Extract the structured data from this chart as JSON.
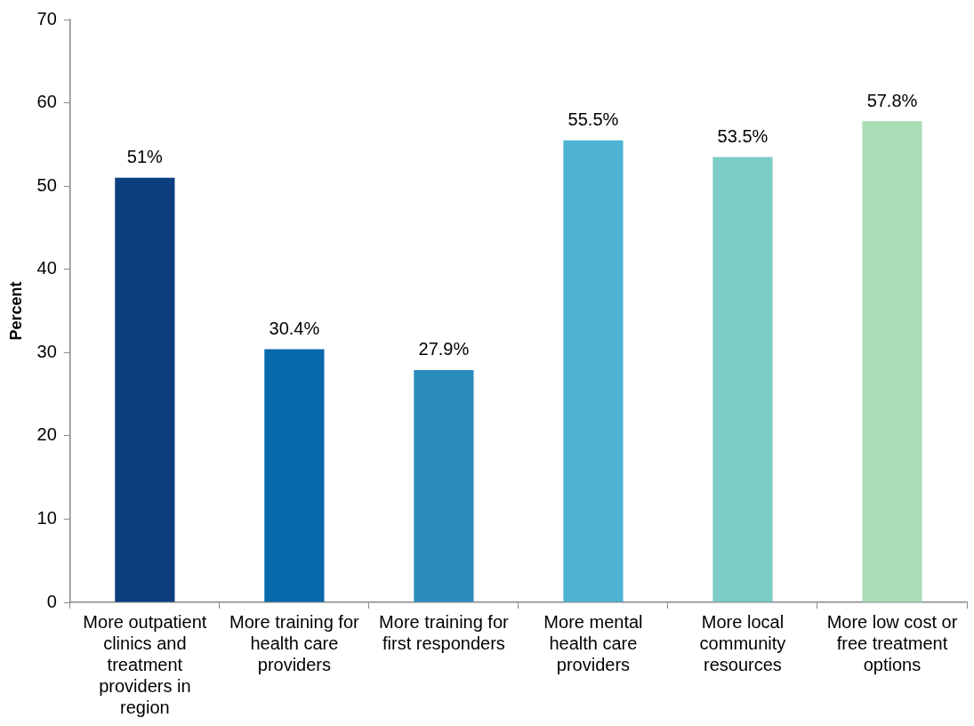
{
  "chart_data": {
    "type": "bar",
    "ylabel": "Percent",
    "categories": [
      "More outpatient clinics and treatment providers in region",
      "More training for health care providers",
      "More training for first responders",
      "More mental health care providers",
      "More local community resources",
      "More low cost or free treatment options"
    ],
    "values": [
      51,
      30.4,
      27.9,
      55.5,
      53.5,
      57.8
    ],
    "colors": [
      "#0b3f7f",
      "#0868ac",
      "#2b8cbe",
      "#4eb3d3",
      "#7bccc4",
      "#a8ddb5"
    ],
    "value_labels": [
      "51%",
      "30.4%",
      "27.9%",
      "55.5%",
      "53.5%",
      "57.8%"
    ],
    "ylim": [
      0,
      70
    ],
    "yticks": [
      0,
      10,
      20,
      30,
      40,
      50,
      60,
      70
    ],
    "grid": false,
    "legend": false
  }
}
